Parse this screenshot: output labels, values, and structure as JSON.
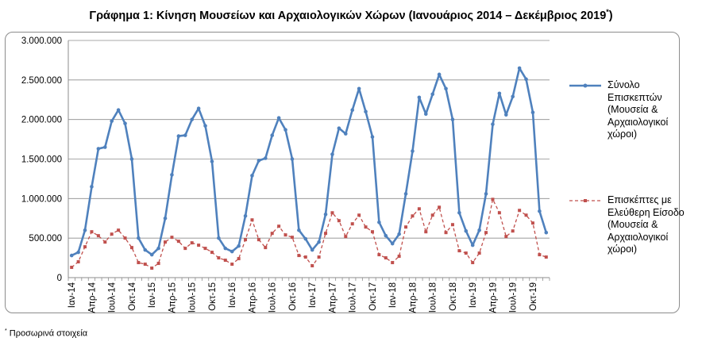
{
  "title": "Γράφημα 1: Κίνηση Μουσείων και Αρχαιολογικών Χώρων (Ιανουάριος 2014 – Δεκέμβριος 2019",
  "title_mark": "*",
  "title_end": ")",
  "footnote_mark": "*",
  "footnote": " Προσωρινά στοιχεία",
  "chart_data": {
    "type": "line",
    "x_tick_labels": [
      "Ιαν-14",
      "Απρ-14",
      "Ιουλ-14",
      "Οκτ-14",
      "Ιαν-15",
      "Απρ-15",
      "Ιουλ-15",
      "Οκτ-15",
      "Ιαν-16",
      "Απρ-16",
      "Ιουλ-16",
      "Οκτ-16",
      "Ιαν-17",
      "Απρ-17",
      "Ιουλ-17",
      "Οκτ-17",
      "Ιαν-18",
      "Απρ-18",
      "Ιουλ-18",
      "Οκτ-18",
      "Ιαν-19",
      "Απρ-19",
      "Ιουλ-19",
      "Οκτ-19"
    ],
    "x_start": "Ιαν-14",
    "x_end": "Δεκ-19",
    "ylim": [
      0,
      3000000
    ],
    "y_ticks": [
      "0",
      "500.000",
      "1.000.000",
      "1.500.000",
      "2.000.000",
      "2.500.000",
      "3.000.000"
    ],
    "grid": true,
    "legend_position": "right",
    "series": [
      {
        "name": "Σύνολο Επισκεπτών (Μουσεία & Αρχαιολογικοί χώροι)",
        "color": "#4f81bd",
        "style": "solid",
        "marker": "circle",
        "values": [
          280000,
          320000,
          600000,
          1150000,
          1630000,
          1650000,
          1980000,
          2120000,
          1950000,
          1500000,
          500000,
          350000,
          290000,
          370000,
          750000,
          1300000,
          1790000,
          1800000,
          2000000,
          2140000,
          1920000,
          1470000,
          500000,
          370000,
          330000,
          400000,
          780000,
          1290000,
          1480000,
          1510000,
          1800000,
          2020000,
          1870000,
          1500000,
          600000,
          490000,
          350000,
          450000,
          800000,
          1560000,
          1890000,
          1820000,
          2120000,
          2390000,
          2100000,
          1780000,
          700000,
          530000,
          430000,
          550000,
          1060000,
          1600000,
          2280000,
          2070000,
          2320000,
          2570000,
          2390000,
          2000000,
          820000,
          590000,
          410000,
          600000,
          1060000,
          1940000,
          2330000,
          2060000,
          2290000,
          2650000,
          2510000,
          2090000,
          840000,
          570000
        ]
      },
      {
        "name": "Επισκέπτες με Ελεύθερη Είσοδο (Μουσεία & Αρχαιολογικοί χώροι)",
        "color": "#c0504d",
        "style": "dashed",
        "marker": "square",
        "values": [
          130000,
          200000,
          390000,
          580000,
          530000,
          450000,
          550000,
          600000,
          500000,
          380000,
          190000,
          170000,
          120000,
          180000,
          450000,
          510000,
          460000,
          370000,
          440000,
          410000,
          370000,
          320000,
          250000,
          220000,
          170000,
          240000,
          480000,
          730000,
          480000,
          380000,
          560000,
          650000,
          540000,
          510000,
          280000,
          260000,
          150000,
          260000,
          560000,
          820000,
          720000,
          520000,
          680000,
          790000,
          640000,
          580000,
          290000,
          250000,
          190000,
          270000,
          640000,
          780000,
          870000,
          580000,
          790000,
          890000,
          570000,
          670000,
          340000,
          310000,
          190000,
          310000,
          570000,
          990000,
          820000,
          520000,
          590000,
          850000,
          790000,
          690000,
          290000,
          260000
        ]
      }
    ]
  }
}
